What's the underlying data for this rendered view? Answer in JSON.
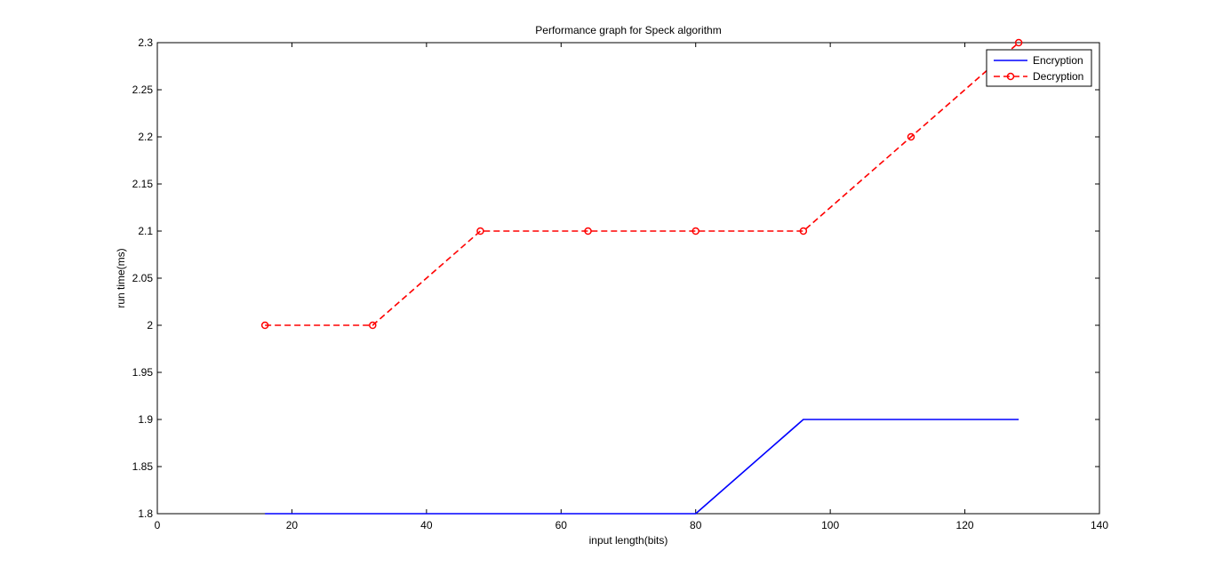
{
  "chart_data": {
    "type": "line",
    "title": "Performance graph for Speck algorithm",
    "xlabel": "input length(bits)",
    "ylabel": "run time(ms)",
    "xlim": [
      0,
      140
    ],
    "ylim": [
      1.8,
      2.3
    ],
    "xticks": [
      0,
      20,
      40,
      60,
      80,
      100,
      120,
      140
    ],
    "xtick_labels": [
      "0",
      "20",
      "40",
      "60",
      "80",
      "100",
      "120",
      "140"
    ],
    "yticks": [
      1.8,
      1.85,
      1.9,
      1.95,
      2.0,
      2.05,
      2.1,
      2.15,
      2.2,
      2.25,
      2.3
    ],
    "ytick_labels": [
      "1.8",
      "1.85",
      "1.9",
      "1.95",
      "2",
      "2.05",
      "2.1",
      "2.15",
      "2.2",
      "2.25",
      "2.3"
    ],
    "grid": false,
    "legend_position": "top-right",
    "x": [
      16,
      32,
      48,
      64,
      80,
      96,
      112,
      128
    ],
    "series": [
      {
        "name": "Encryption",
        "values": [
          1.8,
          1.8,
          1.8,
          1.8,
          1.8,
          1.9,
          1.9,
          1.9
        ],
        "color": "#0000ff",
        "line_style": "solid",
        "marker": "none"
      },
      {
        "name": "Decryption",
        "values": [
          2.0,
          2.0,
          2.1,
          2.1,
          2.1,
          2.1,
          2.2,
          2.3
        ],
        "color": "#ff0000",
        "line_style": "dashed",
        "marker": "circle"
      }
    ]
  }
}
